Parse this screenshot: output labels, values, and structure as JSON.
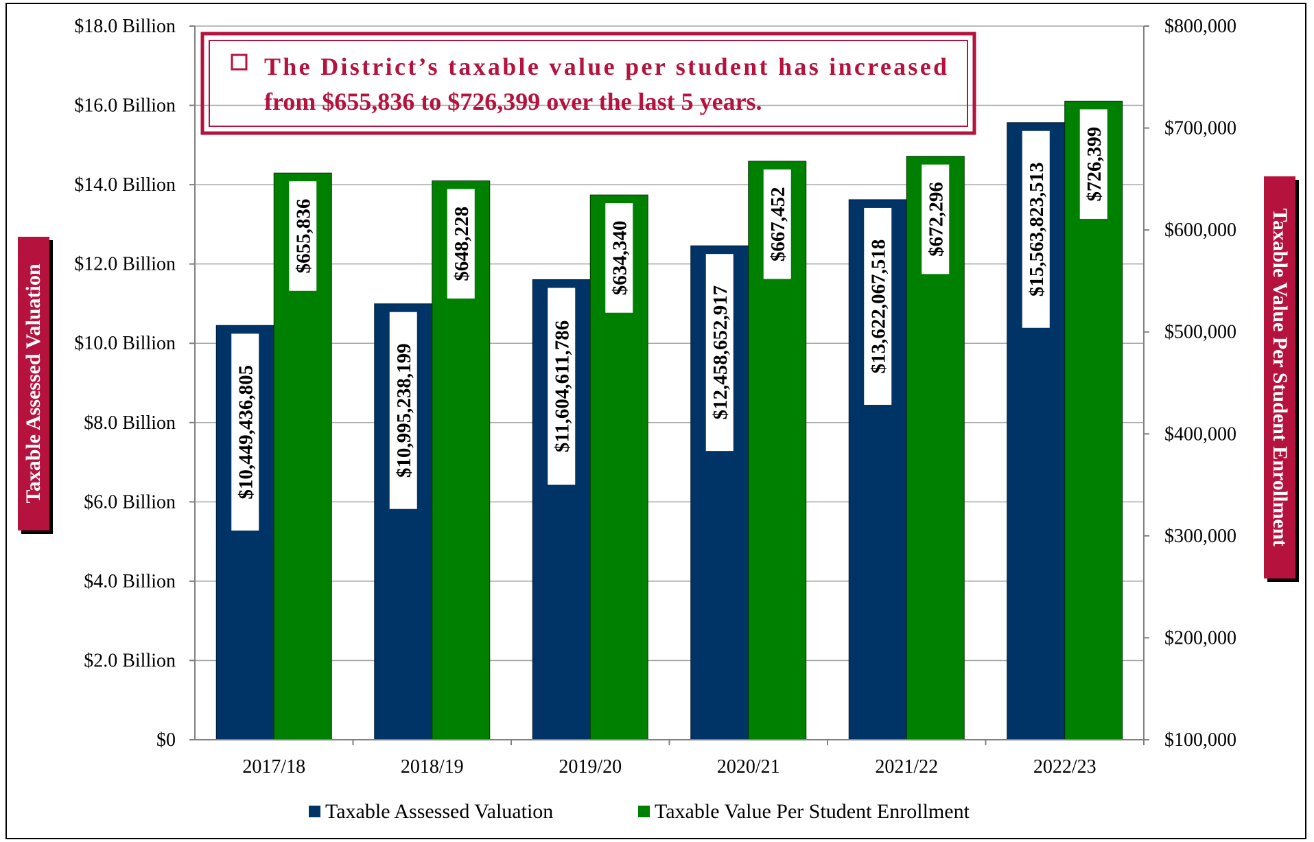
{
  "colors": {
    "series1": "#003366",
    "series2": "#008000",
    "accent": "#b5123d",
    "grid": "#a6a6a6"
  },
  "callout": {
    "line1": "The District’s taxable value per student has increased",
    "line2": "from $655,836 to $726,399 over the last 5 years."
  },
  "chart_data": {
    "type": "bar",
    "categories": [
      "2017/18",
      "2018/19",
      "2019/20",
      "2020/21",
      "2021/22",
      "2022/23"
    ],
    "series": [
      {
        "name": "Taxable Assessed Valuation",
        "axis": "left",
        "values": [
          10449436805,
          10995238199,
          11604611786,
          12458652917,
          13622067518,
          15563823513
        ],
        "labels": [
          "$10,449,436,805",
          "$10,995,238,199",
          "$11,604,611,786",
          "$12,458,652,917",
          "$13,622,067,518",
          "$15,563,823,513"
        ]
      },
      {
        "name": "Taxable Value Per Student Enrollment",
        "axis": "right",
        "values": [
          655836,
          648228,
          634340,
          667452,
          672296,
          726399
        ],
        "labels": [
          "$655,836",
          "$648,228",
          "$634,340",
          "$667,452",
          "$672,296",
          "$726,399"
        ]
      }
    ],
    "y_left": {
      "title": "Taxable Assessed Valuation",
      "range": [
        0,
        18000000000
      ],
      "ticks": [
        0,
        2000000000,
        4000000000,
        6000000000,
        8000000000,
        10000000000,
        12000000000,
        14000000000,
        16000000000,
        18000000000
      ],
      "tick_labels": [
        "$0",
        "$2.0 Billion",
        "$4.0 Billion",
        "$6.0 Billion",
        "$8.0 Billion",
        "$10.0 Billion",
        "$12.0 Billion",
        "$14.0 Billion",
        "$16.0 Billion",
        "$18.0 Billion"
      ]
    },
    "y_right": {
      "title": "Taxable Value Per Student Enrollment",
      "range": [
        100000,
        800000
      ],
      "ticks": [
        100000,
        200000,
        300000,
        400000,
        500000,
        600000,
        700000,
        800000
      ],
      "tick_labels": [
        "$100,000",
        "$200,000",
        "$300,000",
        "$400,000",
        "$500,000",
        "$600,000",
        "$700,000",
        "$800,000"
      ]
    },
    "grid": true,
    "legend": "bottom"
  }
}
